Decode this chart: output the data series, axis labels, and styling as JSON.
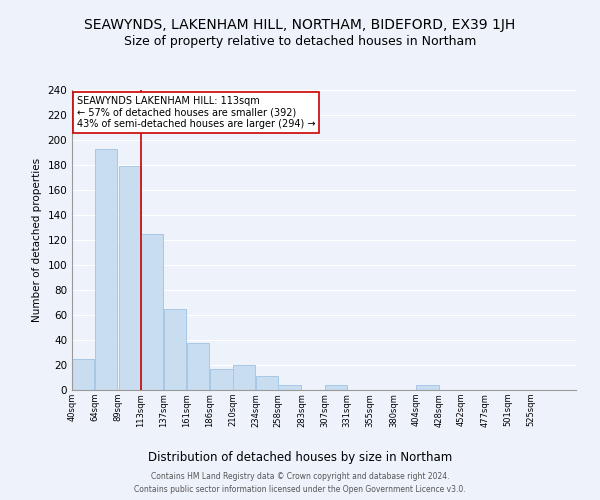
{
  "title": "SEAWYNDS, LAKENHAM HILL, NORTHAM, BIDEFORD, EX39 1JH",
  "subtitle": "Size of property relative to detached houses in Northam",
  "xlabel": "Distribution of detached houses by size in Northam",
  "ylabel": "Number of detached properties",
  "bar_color": "#c9ddf0",
  "bar_edge_color": "#a8c8e8",
  "vline_x": 113,
  "vline_color": "#cc0000",
  "annotation_line1": "SEAWYNDS LAKENHAM HILL: 113sqm",
  "annotation_line2": "← 57% of detached houses are smaller (392)",
  "annotation_line3": "43% of semi-detached houses are larger (294) →",
  "bins_left": [
    40,
    64,
    89,
    113,
    137,
    161,
    186,
    210,
    234,
    258,
    283,
    307,
    331,
    355,
    380,
    404,
    428,
    452,
    477,
    501
  ],
  "bin_width": 24,
  "heights": [
    25,
    193,
    179,
    125,
    65,
    38,
    17,
    20,
    11,
    4,
    0,
    4,
    0,
    0,
    0,
    4,
    0,
    0,
    0,
    0
  ],
  "xtick_labels": [
    "40sqm",
    "64sqm",
    "89sqm",
    "113sqm",
    "137sqm",
    "161sqm",
    "186sqm",
    "210sqm",
    "234sqm",
    "258sqm",
    "283sqm",
    "307sqm",
    "331sqm",
    "355sqm",
    "380sqm",
    "404sqm",
    "428sqm",
    "452sqm",
    "477sqm",
    "501sqm",
    "525sqm"
  ],
  "ylim": [
    0,
    240
  ],
  "yticks": [
    0,
    20,
    40,
    60,
    80,
    100,
    120,
    140,
    160,
    180,
    200,
    220,
    240
  ],
  "footer1": "Contains HM Land Registry data © Crown copyright and database right 2024.",
  "footer2": "Contains public sector information licensed under the Open Government Licence v3.0.",
  "background_color": "#eef2fb",
  "grid_color": "white",
  "title_fontsize": 10,
  "subtitle_fontsize": 9,
  "annotation_box_color": "white",
  "annotation_box_edge": "#cc0000"
}
